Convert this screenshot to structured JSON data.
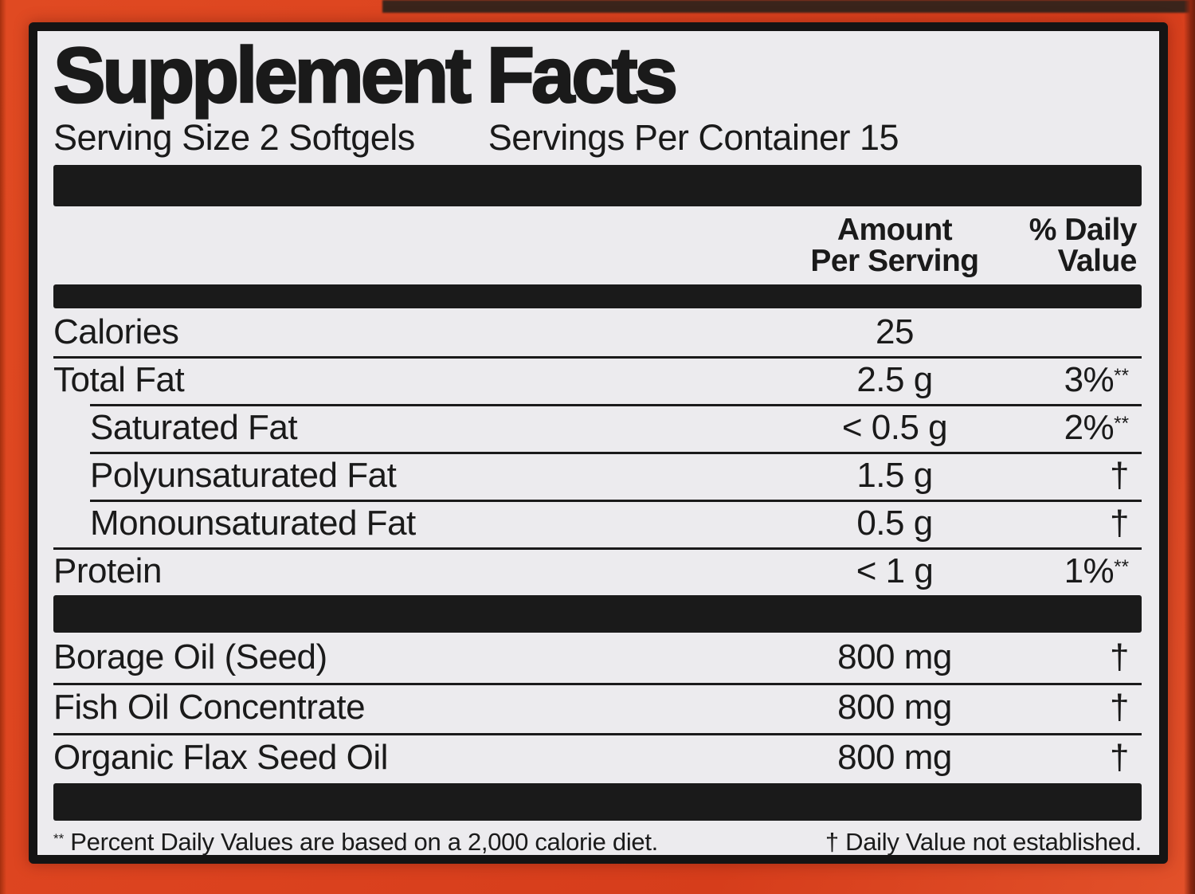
{
  "label": {
    "title": "Supplement Facts",
    "serving_size": "Serving Size 2 Softgels",
    "servings_per_container": "Servings Per Container 15"
  },
  "columns": {
    "amount_line1": "Amount",
    "amount_line2": "Per Serving",
    "dv_line1": "% Daily",
    "dv_line2": "Value"
  },
  "rows": [
    {
      "label": "Calories",
      "amount": "25",
      "dv": "",
      "dv_marker": ""
    },
    {
      "label": "Total Fat",
      "amount": "2.5 g",
      "dv": "3%",
      "dv_marker": "**"
    },
    {
      "label": "Saturated Fat",
      "amount": "< 0.5 g",
      "dv": "2%",
      "dv_marker": "**"
    },
    {
      "label": "Polyunsaturated Fat",
      "amount": "1.5 g",
      "dv": "†",
      "dv_marker": ""
    },
    {
      "label": "Monounsaturated Fat",
      "amount": "0.5 g",
      "dv": "†",
      "dv_marker": ""
    },
    {
      "label": "Protein",
      "amount": "< 1 g",
      "dv": "1%",
      "dv_marker": "**"
    },
    {
      "label": "Borage Oil (Seed)",
      "amount": "800 mg",
      "dv": "†",
      "dv_marker": ""
    },
    {
      "label": "Fish Oil Concentrate",
      "amount": "800 mg",
      "dv": "†",
      "dv_marker": ""
    },
    {
      "label": "Organic Flax Seed Oil",
      "amount": "800 mg",
      "dv": "†",
      "dv_marker": ""
    }
  ],
  "footnote": {
    "left_marker": "**",
    "left_text": "Percent Daily Values are based on a 2,000 calorie diet.",
    "right_text": "† Daily Value not established."
  },
  "colors": {
    "bottle": "#DC431F",
    "panel": "#ECEBEE",
    "ink": "#1A1A1A"
  }
}
